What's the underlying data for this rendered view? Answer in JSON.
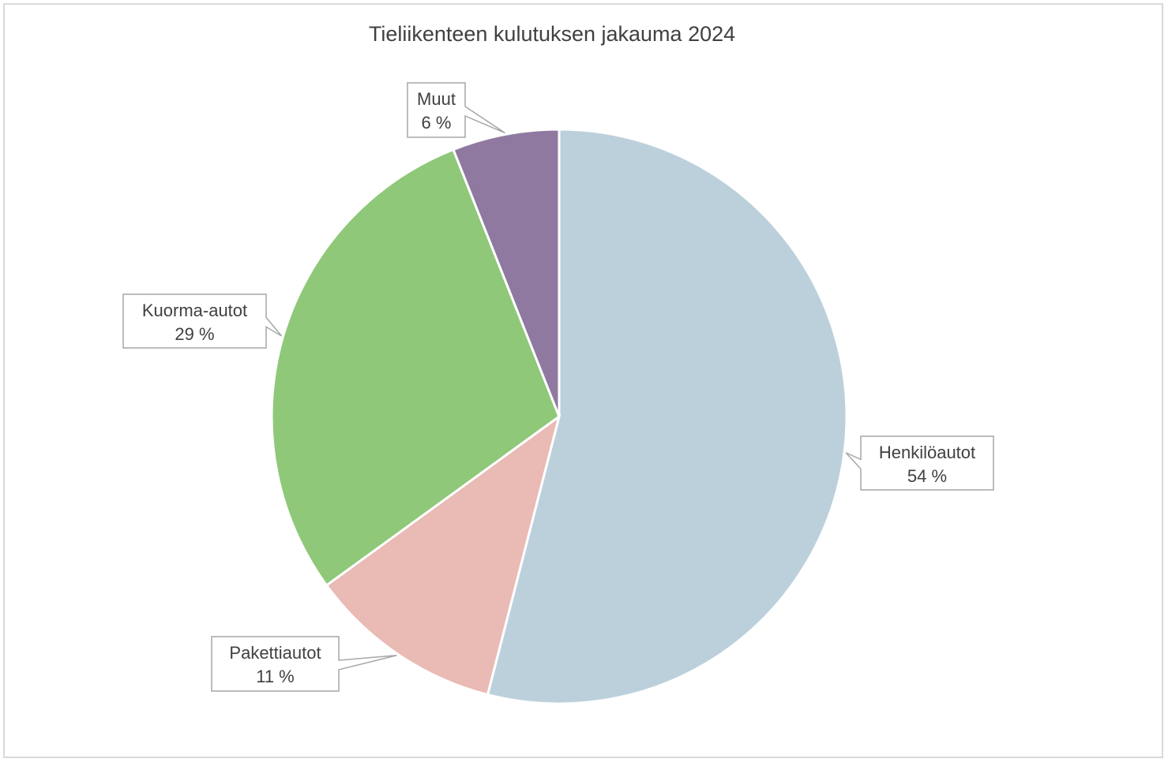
{
  "chart_data": {
    "type": "pie",
    "title": "Tieliikenteen kulutuksen jakauma 2024",
    "slices": [
      {
        "label": "Henkilöautot",
        "value": 54,
        "display": "54 %",
        "color": "#bcd0dc"
      },
      {
        "label": "Pakettiautot",
        "value": 11,
        "display": "11 %",
        "color": "#eabab5"
      },
      {
        "label": "Kuorma-autot",
        "value": 29,
        "display": "29 %",
        "color": "#8fc879"
      },
      {
        "label": "Muut",
        "value": 6,
        "display": "6 %",
        "color": "#8f79a1"
      }
    ],
    "start_angle": "12 o'clock",
    "direction": "clockwise",
    "legend": "none",
    "data_labels": "callouts"
  }
}
